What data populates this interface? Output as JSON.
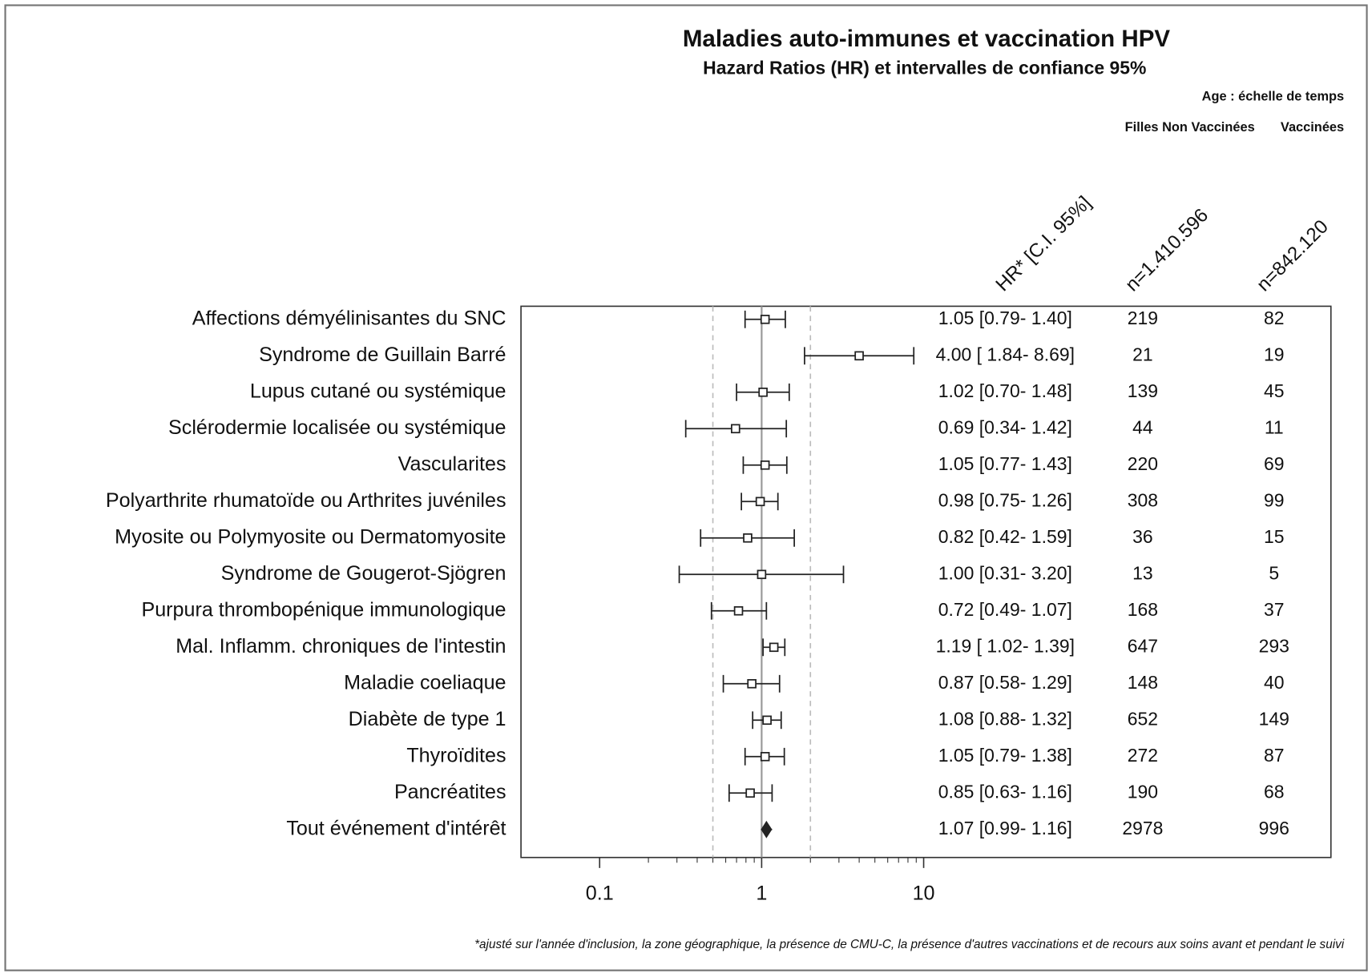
{
  "chart_data": {
    "type": "forest",
    "title": "Maladies auto-immunes et vaccination HPV",
    "subtitle": "Hazard Ratios (HR) et intervalles de confiance 95%",
    "annotations": [
      "Age : échelle de temps",
      "Filles Non Vaccinées",
      "Vaccinées"
    ],
    "hr_header": "HR* [C.I. 95%]",
    "n_unvacc_header": "n=1.410.596",
    "n_vacc_header": "n=842.120",
    "categories": [
      "Affections démyélinisantes du SNC",
      "Syndrome de Guillain Barré",
      "Lupus cutané ou systémique",
      "Sclérodermie localisée ou systémique",
      "Vascularites",
      "Polyarthrite rhumatoïde ou Arthrites juvéniles",
      "Myosite ou Polymyosite ou Dermatomyosite",
      "Syndrome de Gougerot-Sjögren",
      "Purpura thrombopénique immunologique",
      "Mal. Inflamm. chroniques de l'intestin",
      "Maladie coeliaque",
      "Diabète de type 1",
      "Thyroïdites",
      "Pancréatites",
      "Tout événement d'intérêt"
    ],
    "values": [
      1.05,
      4.0,
      1.02,
      0.69,
      1.05,
      0.98,
      0.82,
      1.0,
      0.72,
      1.19,
      0.87,
      1.08,
      1.05,
      0.85,
      1.07
    ],
    "lower": [
      0.79,
      1.84,
      0.7,
      0.34,
      0.77,
      0.75,
      0.42,
      0.31,
      0.49,
      1.02,
      0.58,
      0.88,
      0.79,
      0.63,
      0.99
    ],
    "upper": [
      1.4,
      8.69,
      1.48,
      1.42,
      1.43,
      1.26,
      1.59,
      3.2,
      1.07,
      1.39,
      1.29,
      1.32,
      1.38,
      1.16,
      1.16
    ],
    "value_labels": [
      "1.05 [0.79- 1.40]",
      "4.00 [ 1.84- 8.69]",
      "1.02 [0.70- 1.48]",
      "0.69 [0.34- 1.42]",
      "1.05 [0.77- 1.43]",
      "0.98 [0.75- 1.26]",
      "0.82 [0.42- 1.59]",
      "1.00 [0.31- 3.20]",
      "0.72 [0.49- 1.07]",
      "1.19 [ 1.02- 1.39]",
      "0.87 [0.58- 1.29]",
      "1.08 [0.88- 1.32]",
      "1.05 [0.79- 1.38]",
      "0.85 [0.63- 1.16]",
      "1.07 [0.99- 1.16]"
    ],
    "n_unvacc": [
      219,
      21,
      139,
      44,
      220,
      308,
      36,
      13,
      168,
      647,
      148,
      652,
      272,
      190,
      2978
    ],
    "n_vacc": [
      82,
      19,
      45,
      11,
      69,
      99,
      15,
      5,
      37,
      293,
      40,
      149,
      87,
      68,
      996
    ],
    "xlim": [
      0.0327,
      3265
    ],
    "log_x": true,
    "xticks": [
      0.1,
      1,
      10
    ],
    "xminor": [
      0.2,
      0.3,
      0.4,
      0.5,
      0.6,
      0.7,
      0.8,
      0.9,
      2,
      3,
      4,
      5,
      6,
      7,
      8,
      9
    ],
    "reflines": [
      0.5,
      1,
      2
    ],
    "color": "#222",
    "footnote": "*ajusté sur l'année d'inclusion, la zone géographique, la présence de CMU-C, la présence d'autres vaccinations et de recours aux soins avant et pendant le suivi"
  }
}
